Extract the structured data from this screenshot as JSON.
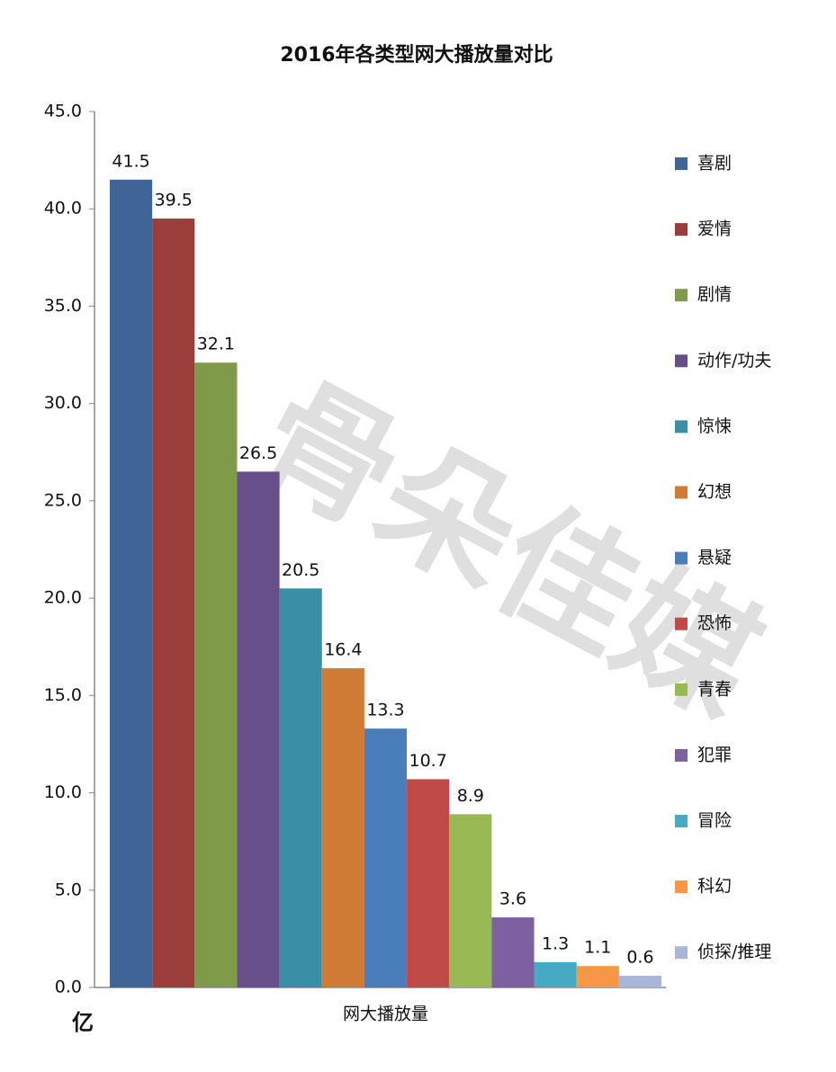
{
  "chart_data": {
    "type": "bar",
    "title": "2016年各类型网大播放量对比",
    "categories": [
      "网大播放量"
    ],
    "series": [
      {
        "name": "喜剧",
        "color": "#3f6597",
        "values": [
          41.5
        ]
      },
      {
        "name": "爱情",
        "color": "#9b3d3b",
        "values": [
          39.5
        ]
      },
      {
        "name": "剧情",
        "color": "#7f9a48",
        "values": [
          32.1
        ]
      },
      {
        "name": "动作/功夫",
        "color": "#67508a",
        "values": [
          26.5
        ]
      },
      {
        "name": "惊悚",
        "color": "#3a8ea6",
        "values": [
          20.5
        ]
      },
      {
        "name": "幻想",
        "color": "#d17c35",
        "values": [
          16.4
        ]
      },
      {
        "name": "悬疑",
        "color": "#4a7ebb",
        "values": [
          13.3
        ]
      },
      {
        "name": "恐怖",
        "color": "#be4b48",
        "values": [
          10.7
        ]
      },
      {
        "name": "青春",
        "color": "#98b954",
        "values": [
          8.9
        ]
      },
      {
        "name": "犯罪",
        "color": "#7d60a0",
        "values": [
          3.6
        ]
      },
      {
        "name": "冒险",
        "color": "#46aac5",
        "values": [
          1.3
        ]
      },
      {
        "name": "科幻",
        "color": "#f79646",
        "values": [
          1.1
        ]
      },
      {
        "name": "侦探/推理",
        "color": "#a8b7d8",
        "values": [
          0.6
        ]
      }
    ],
    "ylim": [
      0,
      45
    ],
    "yticks": [
      {
        "value": 0,
        "label": "0.0"
      },
      {
        "value": 5,
        "label": "5.0"
      },
      {
        "value": 10,
        "label": "10.0"
      },
      {
        "value": 15,
        "label": "15.0"
      },
      {
        "value": 20,
        "label": "20.0"
      },
      {
        "value": 25,
        "label": "25.0"
      },
      {
        "value": 30,
        "label": "30.0"
      },
      {
        "value": 35,
        "label": "35.0"
      },
      {
        "value": 40,
        "label": "40.0"
      },
      {
        "value": 45,
        "label": "45.0"
      }
    ],
    "y_unit": "亿",
    "watermark": "骨朵佳媒",
    "legend": "right"
  }
}
